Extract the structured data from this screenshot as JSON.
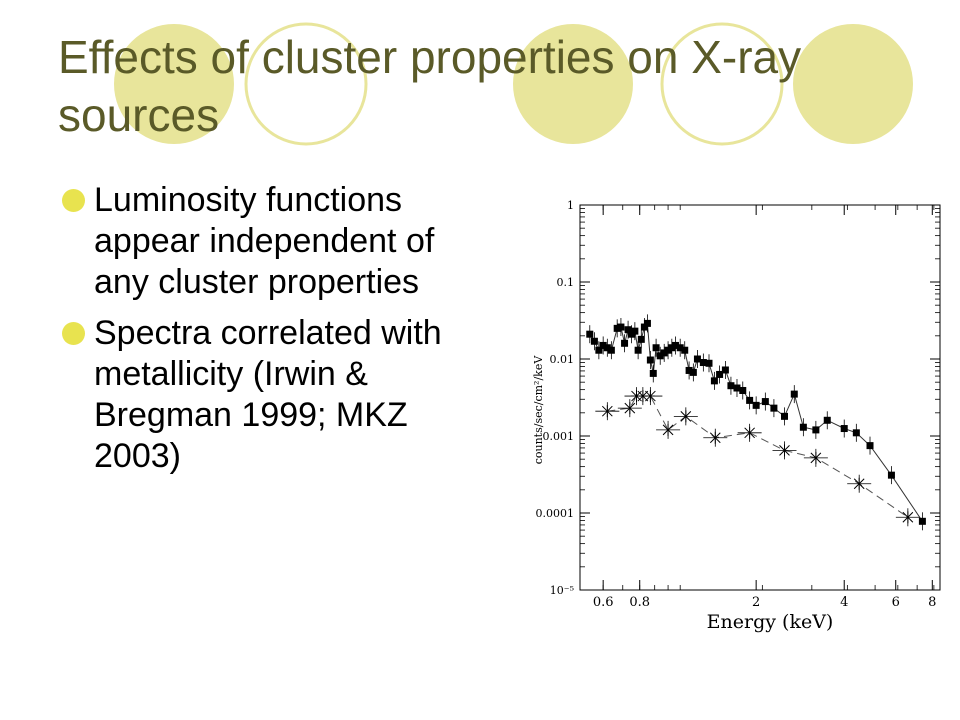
{
  "slide": {
    "title": "Effects of cluster properties on X-ray sources",
    "bullets": [
      "Luminosity functions appear independent of any cluster properties",
      "Spectra correlated with metallicity (Irwin & Bregman 1999; MKZ 2003)"
    ],
    "title_color": "#5a5a28",
    "bullet_color": "#e8e34f",
    "circle_fill": "#e8e59b",
    "circle_stroke": "#e8e59b"
  },
  "chart_data": {
    "type": "scatter",
    "xlabel": "Energy (keV)",
    "ylabel": "counts/sec/cm²/keV",
    "xscale": "log",
    "yscale": "log",
    "xlim": [
      0.5,
      8.5
    ],
    "ylim": [
      1e-05,
      1
    ],
    "xticks": [
      {
        "v": 0.6,
        "label": "0.6"
      },
      {
        "v": 0.8,
        "label": "0.8"
      },
      {
        "v": 2,
        "label": "2"
      },
      {
        "v": 4,
        "label": "4"
      },
      {
        "v": 6,
        "label": "6"
      },
      {
        "v": 8,
        "label": "8"
      }
    ],
    "yticks": [
      {
        "v": 1,
        "label": "1"
      },
      {
        "v": 0.1,
        "label": "0.1"
      },
      {
        "v": 0.01,
        "label": "0.01"
      },
      {
        "v": 0.001,
        "label": "0.001"
      },
      {
        "v": 0.0001,
        "label": "0.0001"
      },
      {
        "v": 1e-05,
        "label": "10⁻⁵"
      }
    ],
    "series": [
      {
        "marker": "square",
        "line": "solid",
        "points": [
          [
            0.54,
            0.021
          ],
          [
            0.56,
            0.017
          ],
          [
            0.58,
            0.013
          ],
          [
            0.6,
            0.015
          ],
          [
            0.62,
            0.014
          ],
          [
            0.64,
            0.013
          ],
          [
            0.67,
            0.025
          ],
          [
            0.69,
            0.026
          ],
          [
            0.71,
            0.016
          ],
          [
            0.73,
            0.024
          ],
          [
            0.75,
            0.021
          ],
          [
            0.77,
            0.023
          ],
          [
            0.79,
            0.013
          ],
          [
            0.81,
            0.018
          ],
          [
            0.83,
            0.026
          ],
          [
            0.85,
            0.029
          ],
          [
            0.87,
            0.0097
          ],
          [
            0.89,
            0.0065
          ],
          [
            0.91,
            0.014
          ],
          [
            0.94,
            0.011
          ],
          [
            0.97,
            0.012
          ],
          [
            1.0,
            0.013
          ],
          [
            1.03,
            0.014
          ],
          [
            1.06,
            0.015
          ],
          [
            1.1,
            0.014
          ],
          [
            1.14,
            0.013
          ],
          [
            1.18,
            0.0071
          ],
          [
            1.22,
            0.0067
          ],
          [
            1.26,
            0.01
          ],
          [
            1.32,
            0.009
          ],
          [
            1.38,
            0.0088
          ],
          [
            1.44,
            0.0052
          ],
          [
            1.5,
            0.0063
          ],
          [
            1.57,
            0.0072
          ],
          [
            1.64,
            0.0045
          ],
          [
            1.72,
            0.0042
          ],
          [
            1.8,
            0.0039
          ],
          [
            1.9,
            0.0029
          ],
          [
            2.0,
            0.0025
          ],
          [
            2.15,
            0.0028
          ],
          [
            2.3,
            0.0023
          ],
          [
            2.5,
            0.0018
          ],
          [
            2.7,
            0.0035
          ],
          [
            2.9,
            0.0013
          ],
          [
            3.2,
            0.0012
          ],
          [
            3.5,
            0.0016
          ],
          [
            4.0,
            0.00125
          ],
          [
            4.4,
            0.0011
          ],
          [
            4.9,
            0.00075
          ],
          [
            5.8,
            0.00031
          ],
          [
            7.4,
            7.8e-05
          ]
        ]
      },
      {
        "marker": "asterisk",
        "line": "dashed",
        "points": [
          [
            0.62,
            0.0021
          ],
          [
            0.74,
            0.0023
          ],
          [
            0.78,
            0.0033
          ],
          [
            0.82,
            0.0033
          ],
          [
            0.87,
            0.0033
          ],
          [
            1.0,
            0.0012
          ],
          [
            1.15,
            0.0018
          ],
          [
            1.45,
            0.00095
          ],
          [
            1.9,
            0.0011
          ],
          [
            2.5,
            0.00065
          ],
          [
            3.2,
            0.00052
          ],
          [
            4.5,
            0.00024
          ],
          [
            6.6,
            8.8e-05
          ]
        ]
      }
    ]
  }
}
